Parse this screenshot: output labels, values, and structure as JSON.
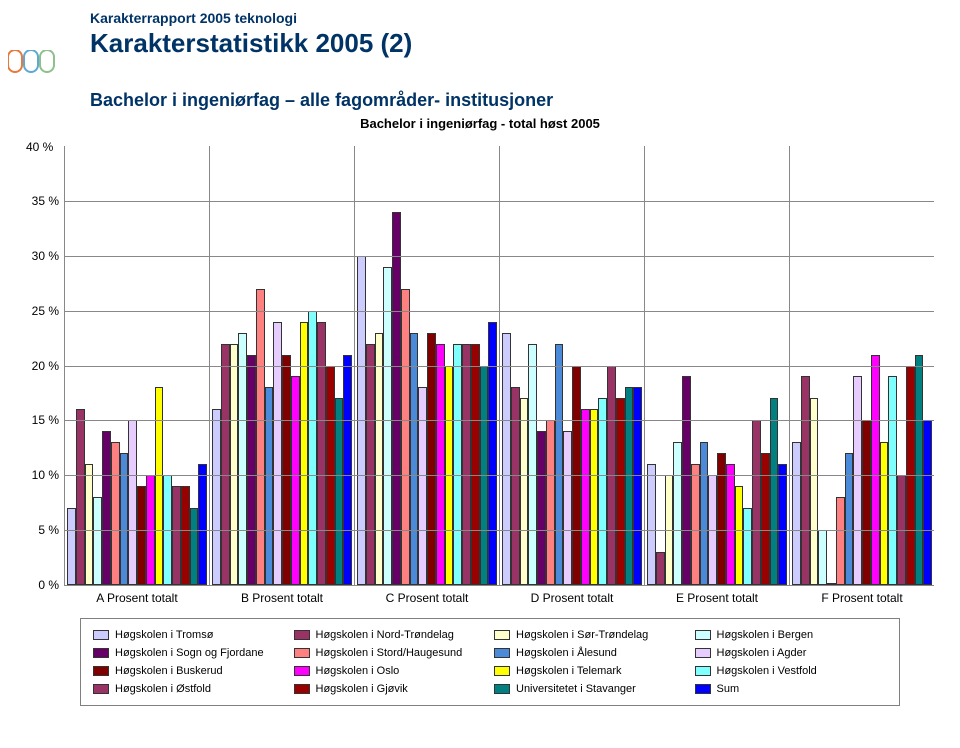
{
  "header": {
    "subtitle": "Karakterrapport 2005 teknologi",
    "title": "Karakterstatistikk 2005 (2)",
    "section_title": "Bachelor i ingeniørfag – alle fagområder- institusjoner",
    "chart_title": "Bachelor i ingeniørfag - total høst 2005"
  },
  "logo": {
    "colors": [
      "#e67a3c",
      "#5fa8d3",
      "#8dc08d"
    ]
  },
  "chart": {
    "type": "bar",
    "ylim": [
      0,
      40
    ],
    "ytick_step": 5,
    "ylabels": [
      "0 %",
      "5 %",
      "10 %",
      "15 %",
      "20 %",
      "25 %",
      "30 %",
      "35 %",
      "40 %"
    ],
    "grid_color": "#888888",
    "background_color": "#ffffff",
    "categories": [
      "A  Prosent totalt",
      "B  Prosent totalt",
      "C  Prosent totalt",
      "D  Prosent totalt",
      "E  Prosent totalt",
      "F     Prosent totalt"
    ],
    "series": [
      {
        "label": "Høgskolen i Tromsø",
        "color": "#ccccff",
        "values": [
          7,
          16,
          30,
          23,
          11,
          13
        ]
      },
      {
        "label": "Høgskolen i Nord-Trøndelag",
        "color": "#993366",
        "values": [
          16,
          22,
          22,
          18,
          3,
          19
        ]
      },
      {
        "label": "Høgskolen i Sør-Trøndelag",
        "color": "#ffffcc",
        "values": [
          11,
          22,
          23,
          17,
          10,
          17
        ]
      },
      {
        "label": "Høgskolen i Bergen",
        "color": "#ccffff",
        "values": [
          8,
          23,
          29,
          22,
          13,
          5
        ]
      },
      {
        "label": "Høgskolen i Sogn og Fjordane",
        "color": "#660066",
        "values": [
          14,
          21,
          34,
          14,
          19,
          0
        ]
      },
      {
        "label": "Høgskolen i Stord/Haugesund",
        "color": "#ff8080",
        "values": [
          13,
          27,
          27,
          15,
          11,
          8
        ]
      },
      {
        "label": "Høgskolen i Ålesund",
        "color": "#4a8ad8",
        "values": [
          12,
          18,
          23,
          22,
          13,
          12
        ]
      },
      {
        "label": "Høgskolen i Agder",
        "color": "#e6ccff",
        "values": [
          15,
          24,
          18,
          14,
          10,
          19
        ]
      },
      {
        "label": "Høgskolen i Buskerud",
        "color": "#800000",
        "values": [
          9,
          21,
          23,
          20,
          12,
          15
        ]
      },
      {
        "label": "Høgskolen i Oslo",
        "color": "#ff00ff",
        "values": [
          10,
          19,
          22,
          16,
          11,
          21
        ]
      },
      {
        "label": "Høgskolen i Telemark",
        "color": "#ffff00",
        "values": [
          18,
          24,
          20,
          16,
          9,
          13
        ]
      },
      {
        "label": "Høgskolen i Vestfold",
        "color": "#80ffff",
        "values": [
          10,
          25,
          22,
          17,
          7,
          19
        ]
      },
      {
        "label": "Høgskolen i Østfold",
        "color": "#993366",
        "values": [
          9,
          24,
          22,
          20,
          15,
          10
        ]
      },
      {
        "label": "Høgskolen i Gjøvik",
        "color": "#990000",
        "values": [
          9,
          20,
          22,
          17,
          12,
          20
        ]
      },
      {
        "label": "Universitetet i Stavanger",
        "color": "#008080",
        "values": [
          7,
          17,
          20,
          18,
          17,
          21
        ]
      },
      {
        "label": "Sum",
        "color": "#0000ff",
        "values": [
          11,
          21,
          24,
          18,
          11,
          15
        ]
      }
    ]
  }
}
